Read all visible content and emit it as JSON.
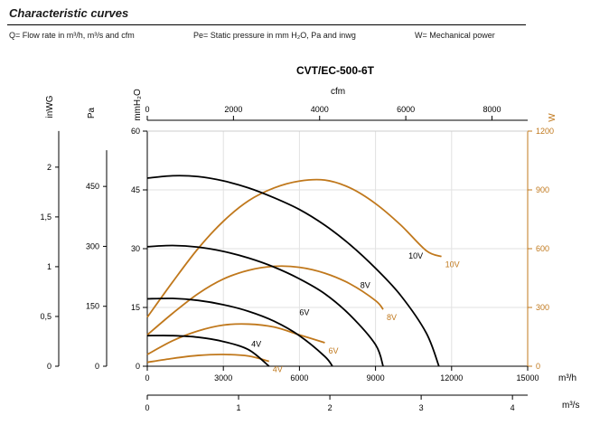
{
  "header": {
    "title": "Characteristic curves",
    "legend": [
      "Q= Flow rate in m³/h, m³/s and cfm",
      "Pe= Static pressure in mm H₂O, Pa and inwg",
      "W= Mechanical power"
    ]
  },
  "colors": {
    "pressure_curve": "#000000",
    "power_curve": "#c0781c",
    "axis": "#000000"
  },
  "chart_data": {
    "type": "line",
    "title": "CVT/EC-500-6T",
    "x_primary": {
      "label": "m³/h",
      "range": [
        0,
        15000
      ],
      "ticks": [
        "0",
        "3000",
        "6000",
        "9000",
        "12000",
        "15000"
      ]
    },
    "x_secondary_bottom": {
      "label": "m³/s",
      "range": [
        0,
        4.1667
      ],
      "ticks": [
        "0",
        "1",
        "2",
        "3",
        "4"
      ]
    },
    "x_secondary_top": {
      "label": "cfm",
      "range": [
        0,
        8829
      ],
      "ticks": [
        "0",
        "2000",
        "4000",
        "6000",
        "8000"
      ]
    },
    "y_primary": {
      "label": "mmH₂O",
      "range": [
        0,
        60
      ],
      "ticks": [
        "0",
        "15",
        "30",
        "45",
        "60"
      ]
    },
    "y_pa": {
      "label": "Pa",
      "range": [
        0,
        588.4
      ],
      "ticks": [
        "0",
        "150",
        "300",
        "450"
      ]
    },
    "y_inwg": {
      "label": "inWG",
      "range": [
        0,
        2.362
      ],
      "ticks": [
        "0",
        "0,5",
        "1",
        "1,5",
        "2"
      ]
    },
    "y_right": {
      "label": "W",
      "range": [
        0,
        1200
      ],
      "ticks": [
        "0",
        "300",
        "600",
        "900",
        "1200"
      ]
    },
    "pressure_series": [
      {
        "name": "10V",
        "label": "10V",
        "points": [
          [
            0,
            48
          ],
          [
            1000,
            48.6
          ],
          [
            2000,
            48.4
          ],
          [
            3000,
            47.3
          ],
          [
            4000,
            45.5
          ],
          [
            5000,
            43
          ],
          [
            6000,
            40
          ],
          [
            7000,
            36
          ],
          [
            8000,
            31
          ],
          [
            9000,
            25
          ],
          [
            10000,
            18
          ],
          [
            11000,
            8.5
          ],
          [
            11500,
            0
          ]
        ]
      },
      {
        "name": "8V",
        "label": "8V",
        "points": [
          [
            0,
            30.5
          ],
          [
            1000,
            30.8
          ],
          [
            2000,
            30.4
          ],
          [
            3000,
            29.3
          ],
          [
            4000,
            27.6
          ],
          [
            5000,
            25.3
          ],
          [
            6000,
            22.3
          ],
          [
            7000,
            18.5
          ],
          [
            8000,
            13
          ],
          [
            9000,
            5.5
          ],
          [
            9300,
            0
          ]
        ]
      },
      {
        "name": "6V",
        "label": "6V",
        "points": [
          [
            0,
            17.2
          ],
          [
            1000,
            17.3
          ],
          [
            2000,
            16.8
          ],
          [
            3000,
            15.7
          ],
          [
            4000,
            14
          ],
          [
            5000,
            11.5
          ],
          [
            6000,
            7.8
          ],
          [
            7000,
            2.5
          ],
          [
            7300,
            0
          ]
        ]
      },
      {
        "name": "4V",
        "label": "4V",
        "points": [
          [
            0,
            7.8
          ],
          [
            1000,
            7.8
          ],
          [
            2000,
            7.4
          ],
          [
            3000,
            6.3
          ],
          [
            4000,
            4.2
          ],
          [
            4800,
            0
          ]
        ]
      }
    ],
    "power_series": [
      {
        "name": "10V",
        "label": "10V",
        "points": [
          [
            0,
            250
          ],
          [
            1000,
            430
          ],
          [
            2000,
            600
          ],
          [
            3000,
            740
          ],
          [
            4000,
            845
          ],
          [
            5000,
            910
          ],
          [
            6000,
            945
          ],
          [
            7000,
            950
          ],
          [
            8000,
            910
          ],
          [
            9000,
            830
          ],
          [
            10000,
            720
          ],
          [
            11000,
            590
          ],
          [
            11600,
            560
          ]
        ]
      },
      {
        "name": "8V",
        "label": "8V",
        "points": [
          [
            0,
            160
          ],
          [
            1000,
            270
          ],
          [
            2000,
            370
          ],
          [
            3000,
            445
          ],
          [
            4000,
            490
          ],
          [
            5000,
            510
          ],
          [
            6000,
            505
          ],
          [
            7000,
            475
          ],
          [
            8000,
            420
          ],
          [
            9000,
            335
          ],
          [
            9300,
            290
          ]
        ]
      },
      {
        "name": "6V",
        "label": "6V",
        "points": [
          [
            0,
            60
          ],
          [
            1000,
            130
          ],
          [
            2000,
            180
          ],
          [
            3000,
            210
          ],
          [
            4000,
            215
          ],
          [
            5000,
            200
          ],
          [
            6000,
            160
          ],
          [
            7000,
            120
          ]
        ]
      },
      {
        "name": "4V",
        "label": "4V",
        "points": [
          [
            0,
            20
          ],
          [
            1000,
            40
          ],
          [
            2000,
            55
          ],
          [
            3000,
            60
          ],
          [
            4000,
            52
          ],
          [
            4800,
            25
          ]
        ]
      }
    ],
    "grid": true,
    "legend_placement": "inline labels at curve ends"
  }
}
